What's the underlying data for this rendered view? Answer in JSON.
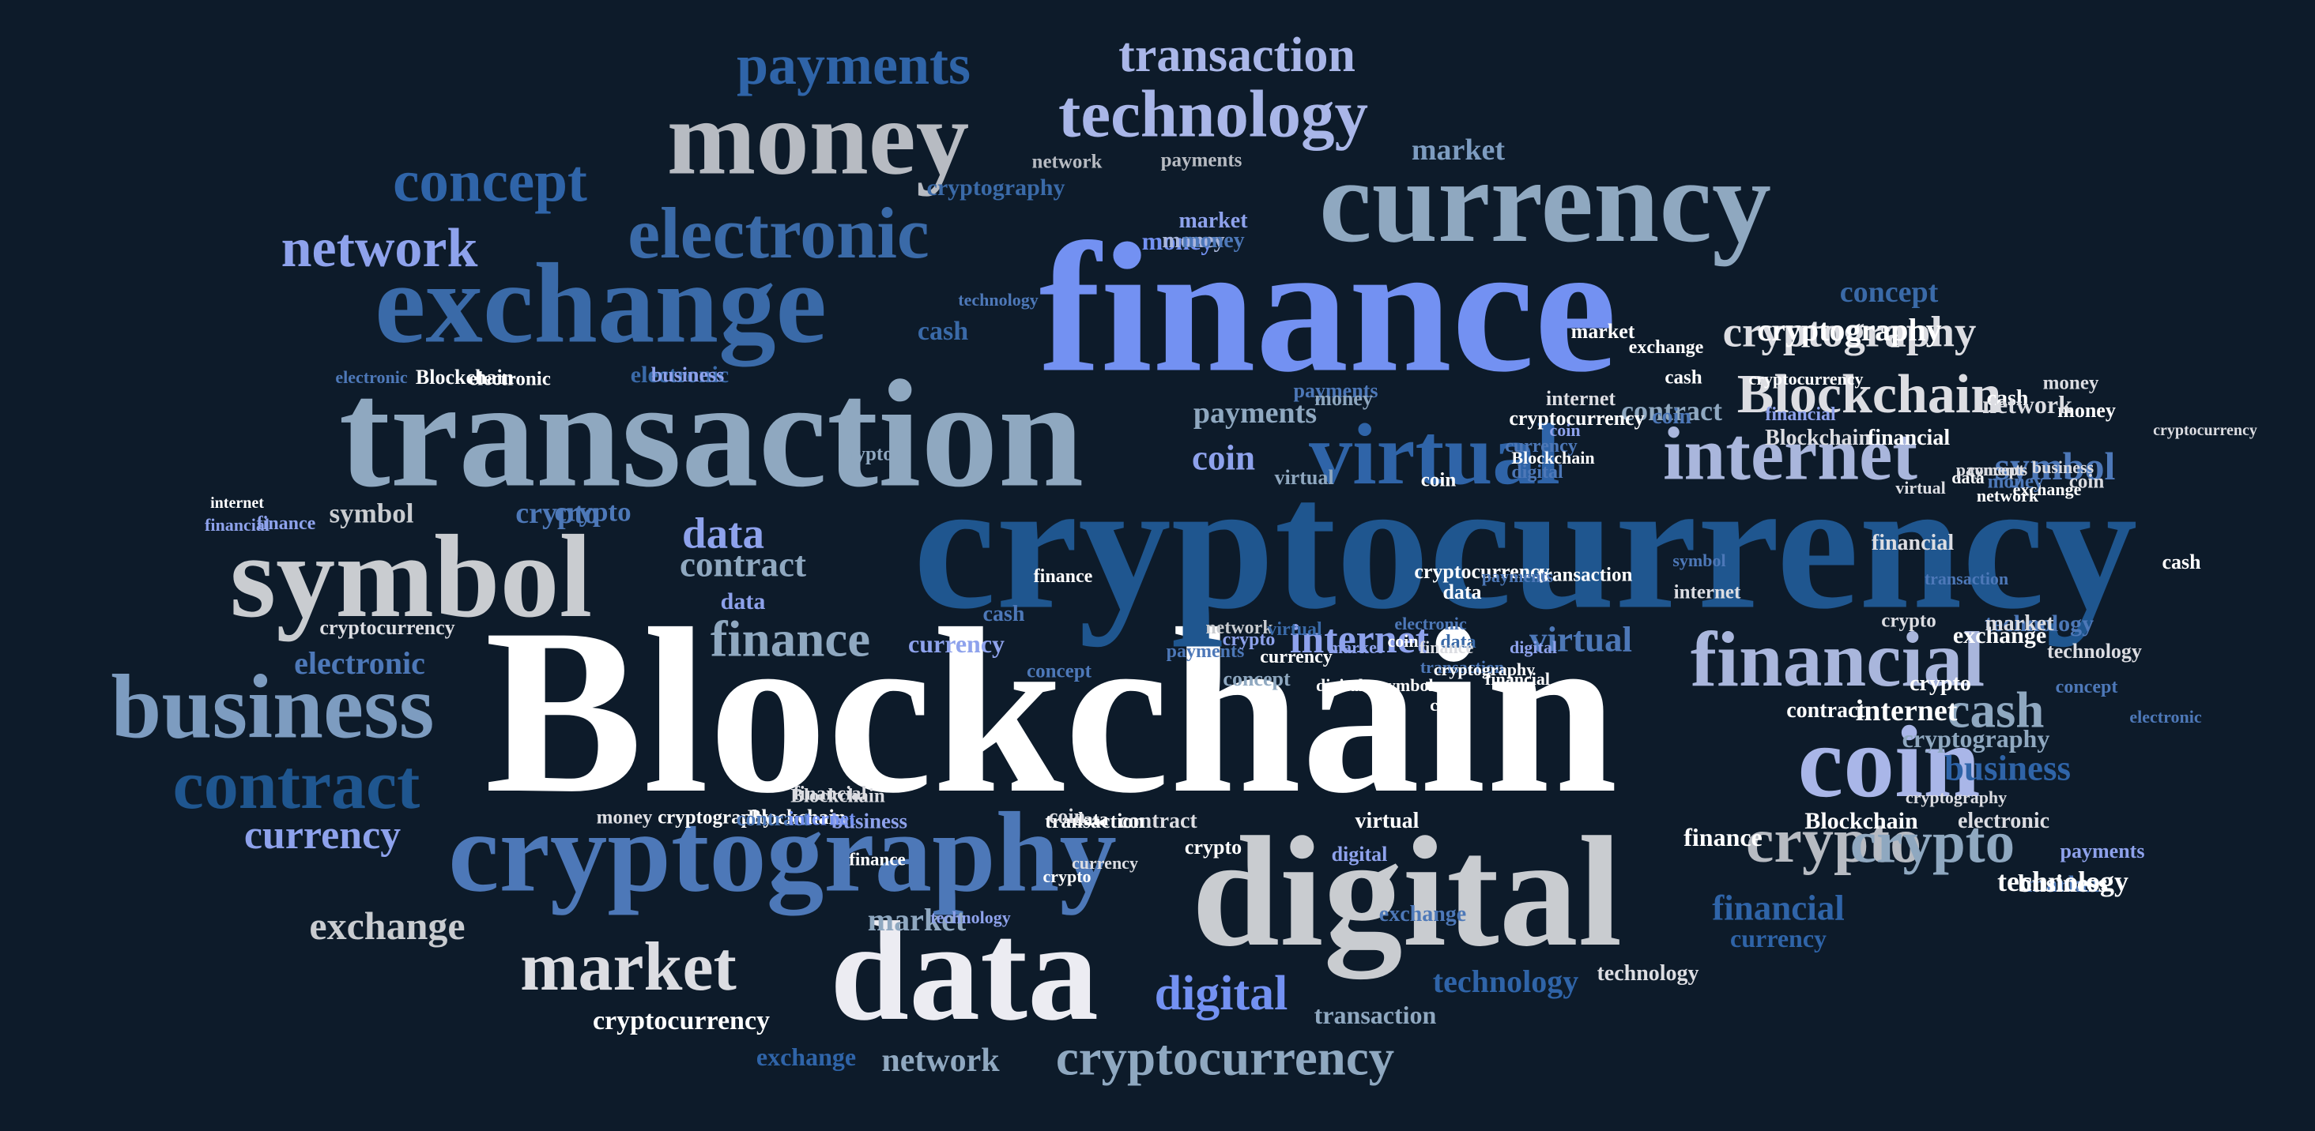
{
  "palette": {
    "background": "#0d1b2a",
    "white": "#ffffff",
    "light_gray": "#c9ccd0",
    "pale_blue": "#a9b6dc",
    "steel": "#8fa8c0",
    "bright_blue": "#7391f2",
    "mid_blue": "#4d78b8",
    "deep_blue": "#1f568f",
    "periwinkle": "#8ea2ec"
  },
  "words": [
    {
      "text": "Blockchain",
      "color": "#ffffff"
    },
    {
      "text": "cryptocurrency",
      "color": "#1f568f"
    },
    {
      "text": "finance",
      "color": "#7391f2"
    },
    {
      "text": "transaction",
      "color": "#8fa8c0"
    },
    {
      "text": "digital",
      "color": "#c9ccd0"
    },
    {
      "text": "data",
      "color": "#ececf2"
    },
    {
      "text": "currency",
      "color": "#8fa8c0"
    },
    {
      "text": "exchange",
      "color": "#3a6aa8"
    },
    {
      "text": "money",
      "color": "#b7bbc2"
    },
    {
      "text": "symbol",
      "color": "#c9ccd0"
    },
    {
      "text": "cryptography",
      "color": "#4d78b8"
    },
    {
      "text": "coin",
      "color": "#a9b6e8"
    },
    {
      "text": "business",
      "color": "#7d9cc0"
    },
    {
      "text": "virtual",
      "color": "#2f64a8"
    },
    {
      "text": "electronic",
      "color": "#3a6aa8"
    },
    {
      "text": "technology",
      "color": "#a9b6e8"
    },
    {
      "text": "internet",
      "color": "#a9b6dc"
    },
    {
      "text": "financial",
      "color": "#a9b6dc"
    },
    {
      "text": "contract",
      "color": "#1f568f"
    },
    {
      "text": "market",
      "color": "#dcdde2"
    },
    {
      "text": "payments",
      "color": "#2f64a8"
    },
    {
      "text": "concept",
      "color": "#2f64a8"
    },
    {
      "text": "network",
      "color": "#8ea2ec"
    },
    {
      "text": "crypto",
      "color": "#b7bbc2"
    },
    {
      "text": "Blockchain",
      "color": "#dcdde2"
    },
    {
      "text": "transaction",
      "color": "#a9b6e8"
    },
    {
      "text": "cryptocurrency",
      "color": "#8fa8c0"
    },
    {
      "text": "cryptography",
      "color": "#dcdde2"
    },
    {
      "text": "internet",
      "color": "#8ea2ec"
    },
    {
      "text": "virtual",
      "color": "#4d78b8"
    },
    {
      "text": "finance",
      "color": "#8fa8c0"
    },
    {
      "text": "contract",
      "color": "#8fa8c0"
    },
    {
      "text": "data",
      "color": "#8ea2ec"
    },
    {
      "text": "symbol",
      "color": "#4d78b8"
    },
    {
      "text": "business",
      "color": "#2f64a8"
    },
    {
      "text": "exchange",
      "color": "#c9ccd0"
    },
    {
      "text": "market",
      "color": "#8fa8c0"
    },
    {
      "text": "currency",
      "color": "#8ea2ec"
    },
    {
      "text": "digital",
      "color": "#7391f2"
    },
    {
      "text": "technology",
      "color": "#2f64a8"
    },
    {
      "text": "financial",
      "color": "#2f64a8"
    },
    {
      "text": "currency",
      "color": "#2f64a8"
    },
    {
      "text": "cash",
      "color": "#8fa8c0"
    },
    {
      "text": "crypto",
      "color": "#8fa8c0"
    },
    {
      "text": "cryptocurrency",
      "color": "#ffffff"
    },
    {
      "text": "network",
      "color": "#8fa8c0"
    },
    {
      "text": "exchange",
      "color": "#2f64a8"
    },
    {
      "text": "transaction",
      "color": "#8fa8c0"
    },
    {
      "text": "technology",
      "color": "#dcdde2"
    },
    {
      "text": "concept",
      "color": "#3a6aa8"
    },
    {
      "text": "cryptography",
      "color": "#ffffff"
    },
    {
      "text": "money",
      "color": "#7391f2"
    },
    {
      "text": "market",
      "color": "#7d9cc0"
    },
    {
      "text": "payments",
      "color": "#8fa8c0"
    },
    {
      "text": "coin",
      "color": "#8ea2ec"
    },
    {
      "text": "cash",
      "color": "#3a6aa8"
    },
    {
      "text": "contract",
      "color": "#8fa8c0"
    },
    {
      "text": "crypto",
      "color": "#4d78b8"
    },
    {
      "text": "data",
      "color": "#8ea2ec"
    },
    {
      "text": "money",
      "color": "#a9b6dc"
    },
    {
      "text": "coin",
      "color": "#4d78b8"
    },
    {
      "text": "electronic",
      "color": "#3a6aa8"
    },
    {
      "text": "cash",
      "color": "#4d78b8"
    },
    {
      "text": "cryptography",
      "color": "#3a6aa8"
    },
    {
      "text": "network",
      "color": "#b7bbc2"
    },
    {
      "text": "payments",
      "color": "#b7bbc2"
    },
    {
      "text": "market",
      "color": "#8ea2ec"
    },
    {
      "text": "money",
      "color": "#4d78b8"
    },
    {
      "text": "technology",
      "color": "#4d78b8"
    },
    {
      "text": "cryptocurrency",
      "color": "#dcdde2"
    },
    {
      "text": "electronic",
      "color": "#ffffff"
    },
    {
      "text": "Blockchain",
      "color": "#ffffff"
    },
    {
      "text": "business",
      "color": "#8ea2ec"
    },
    {
      "text": "electronic",
      "color": "#4d78b8"
    },
    {
      "text": "symbol",
      "color": "#c9ccd0"
    },
    {
      "text": "crypto",
      "color": "#4d78b8"
    },
    {
      "text": "finance",
      "color": "#8ea2ec"
    },
    {
      "text": "internet",
      "color": "#ffffff"
    },
    {
      "text": "cryptocurrency",
      "color": "#dcdde2"
    },
    {
      "text": "electronic",
      "color": "#4d78b8"
    },
    {
      "text": "financial",
      "color": "#dcdde2"
    },
    {
      "text": "Blockchain",
      "color": "#ffffff"
    },
    {
      "text": "exchange",
      "color": "#4d78b8"
    },
    {
      "text": "financial",
      "color": "#8ea2ec"
    },
    {
      "text": "currency",
      "color": "#8ea2ec"
    },
    {
      "text": "crypto",
      "color": "#ffffff"
    },
    {
      "text": "business",
      "color": "#8ea2ec"
    },
    {
      "text": "cryptography",
      "color": "#ffffff"
    },
    {
      "text": "contract",
      "color": "#4d78b8"
    },
    {
      "text": "internet",
      "color": "#7391f2"
    },
    {
      "text": "contract",
      "color": "#dcdde2"
    },
    {
      "text": "virtual",
      "color": "#ffffff"
    },
    {
      "text": "digital",
      "color": "#8ea2ec"
    },
    {
      "text": "crypto",
      "color": "#ffffff"
    },
    {
      "text": "data",
      "color": "#ffffff"
    },
    {
      "text": "finance",
      "color": "#ffffff"
    },
    {
      "text": "transaction",
      "color": "#ffffff"
    },
    {
      "text": "technology",
      "color": "#8ea2ec"
    },
    {
      "text": "currency",
      "color": "#dcdde2"
    },
    {
      "text": "crypto",
      "color": "#ffffff"
    },
    {
      "text": "coin",
      "color": "#dcdde2"
    },
    {
      "text": "money",
      "color": "#dcdde2"
    },
    {
      "text": "concept",
      "color": "#4d78b8"
    },
    {
      "text": "Blockchain",
      "color": "#dcdde2"
    },
    {
      "text": "financial",
      "color": "#ffffff"
    },
    {
      "text": "cash",
      "color": "#ffffff"
    },
    {
      "text": "finance",
      "color": "#ffffff"
    },
    {
      "text": "internet",
      "color": "#ffffff"
    },
    {
      "text": "cryptography",
      "color": "#8fa8c0"
    },
    {
      "text": "technology",
      "color": "#4d78b8"
    },
    {
      "text": "network",
      "color": "#c9ccd0"
    },
    {
      "text": "payments",
      "color": "#4d78b8"
    },
    {
      "text": "concept",
      "color": "#4d78b8"
    },
    {
      "text": "Blockchain",
      "color": "#ffffff"
    },
    {
      "text": "money",
      "color": "#ffffff"
    },
    {
      "text": "data",
      "color": "#3a6aa8"
    },
    {
      "text": "cash",
      "color": "#ffffff"
    },
    {
      "text": "financial",
      "color": "#ffffff"
    },
    {
      "text": "transaction",
      "color": "#4d78b8"
    },
    {
      "text": "coin",
      "color": "#ffffff"
    },
    {
      "text": "digital",
      "color": "#ffffff"
    },
    {
      "text": "exchange",
      "color": "#ffffff"
    },
    {
      "text": "cryptography",
      "color": "#ffffff"
    },
    {
      "text": "market",
      "color": "#4d78b8"
    },
    {
      "text": "virtual",
      "color": "#3a6aa8"
    },
    {
      "text": "crypto",
      "color": "#8ea2ec"
    },
    {
      "text": "currency",
      "color": "#ffffff"
    },
    {
      "text": "concept",
      "color": "#8fa8c0"
    },
    {
      "text": "market",
      "color": "#8ea2ec"
    },
    {
      "text": "electronic",
      "color": "#4d78b8"
    },
    {
      "text": "digital",
      "color": "#8ea2ec"
    },
    {
      "text": "business",
      "color": "#ffffff"
    },
    {
      "text": "symbol",
      "color": "#ffffff"
    },
    {
      "text": "payments",
      "color": "#8ea2ec"
    },
    {
      "text": "technology",
      "color": "#ffffff"
    },
    {
      "text": "Blockchain",
      "color": "#dcdde2"
    },
    {
      "text": "electronic",
      "color": "#dcdde2"
    },
    {
      "text": "cryptocurrency",
      "color": "#ffffff"
    },
    {
      "text": "payments",
      "color": "#4d78b8"
    },
    {
      "text": "money",
      "color": "#8fa8c0"
    },
    {
      "text": "internet",
      "color": "#dcdde2"
    },
    {
      "text": "exchange",
      "color": "#ffffff"
    },
    {
      "text": "network",
      "color": "#dcdde2"
    },
    {
      "text": "transaction",
      "color": "#ffffff"
    },
    {
      "text": "virtual",
      "color": "#8fa8c0"
    },
    {
      "text": "crypto",
      "color": "#8fa8c0"
    },
    {
      "text": "finance",
      "color": "#ffffff"
    },
    {
      "text": "financial",
      "color": "#8ea2ec"
    },
    {
      "text": "market",
      "color": "#ffffff"
    },
    {
      "text": "cash",
      "color": "#ffffff"
    },
    {
      "text": "coin",
      "color": "#ffffff"
    },
    {
      "text": "coin",
      "color": "#8ea2ec"
    },
    {
      "text": "cryptocurrency",
      "color": "#ffffff"
    },
    {
      "text": "currency",
      "color": "#4d78b8"
    },
    {
      "text": "digital",
      "color": "#4d78b8"
    },
    {
      "text": "data",
      "color": "#ffffff"
    },
    {
      "text": "cryptocurrency",
      "color": "#ffffff"
    },
    {
      "text": "contract",
      "color": "#ffffff"
    },
    {
      "text": "payments",
      "color": "#4d78b8"
    },
    {
      "text": "symbol",
      "color": "#4d78b8"
    },
    {
      "text": "technology",
      "color": "#dcdde2"
    },
    {
      "text": "cryptography",
      "color": "#dcdde2"
    },
    {
      "text": "Blockchain",
      "color": "#ffffff"
    },
    {
      "text": "network",
      "color": "#ffffff"
    },
    {
      "text": "money",
      "color": "#dcdde2"
    },
    {
      "text": "concept",
      "color": "#dcdde2"
    },
    {
      "text": "cash",
      "color": "#ffffff"
    },
    {
      "text": "electronic",
      "color": "#4d78b8"
    },
    {
      "text": "transaction",
      "color": "#4d78b8"
    },
    {
      "text": "data",
      "color": "#ffffff"
    },
    {
      "text": "exchange",
      "color": "#ffffff"
    },
    {
      "text": "business",
      "color": "#dcdde2"
    },
    {
      "text": "virtual",
      "color": "#dcdde2"
    },
    {
      "text": "finance",
      "color": "#dcdde2"
    },
    {
      "text": "internet",
      "color": "#dcdde2"
    },
    {
      "text": "crypto",
      "color": "#dcdde2"
    },
    {
      "text": "market",
      "color": "#dcdde2"
    },
    {
      "text": "financial",
      "color": "#dcdde2"
    },
    {
      "text": "coin",
      "color": "#dcdde2"
    },
    {
      "text": "money",
      "color": "#4d78b8"
    },
    {
      "text": "payments",
      "color": "#dcdde2"
    },
    {
      "text": "technology",
      "color": "#dcdde2"
    },
    {
      "text": "cash",
      "color": "#dcdde2"
    },
    {
      "text": "symbol",
      "color": "#dcdde2"
    },
    {
      "text": "currency",
      "color": "#dcdde2"
    },
    {
      "text": "contract",
      "color": "#dcdde2"
    },
    {
      "text": "digital",
      "color": "#dcdde2"
    },
    {
      "text": "concept",
      "color": "#dcdde2"
    },
    {
      "text": "network",
      "color": "#dcdde2"
    },
    {
      "text": "internet",
      "color": "#dcdde2"
    }
  ]
}
